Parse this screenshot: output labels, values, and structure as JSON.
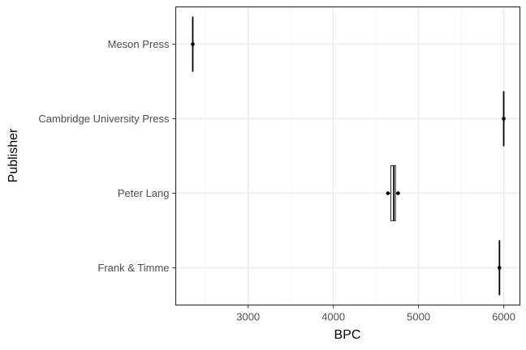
{
  "chart_data": {
    "type": "boxplot",
    "xlabel": "BPC",
    "ylabel": "Publisher",
    "xlim": [
      2150,
      6190
    ],
    "xticks": [
      3000,
      4000,
      5000,
      6000
    ],
    "xtick_labels": [
      "3000",
      "4000",
      "5000",
      "6000"
    ],
    "grid": true,
    "categories": [
      "Meson Press",
      "Cambridge University Press",
      "Peter Lang",
      "Frank & Timme"
    ],
    "boxes": [
      {
        "category": "Meson Press",
        "min": 2350,
        "q1": 2350,
        "median": 2350,
        "q3": 2350,
        "max": 2350,
        "points": [
          2350
        ]
      },
      {
        "category": "Cambridge University Press",
        "min": 6000,
        "q1": 6000,
        "median": 6000,
        "q3": 6000,
        "max": 6000,
        "points": [
          6000
        ]
      },
      {
        "category": "Peter Lang",
        "min": 4640,
        "q1": 4675,
        "median": 4710,
        "q3": 4730,
        "max": 4760,
        "points": [
          4640,
          4760
        ]
      },
      {
        "category": "Frank & Timme",
        "min": 5950,
        "q1": 5950,
        "median": 5950,
        "q3": 5950,
        "max": 5950,
        "points": [
          5950
        ]
      }
    ],
    "colors": {
      "panel_border": "#333333",
      "grid_major": "#ebebeb",
      "grid_minor": "#f5f5f5",
      "mark": "#000000"
    }
  }
}
